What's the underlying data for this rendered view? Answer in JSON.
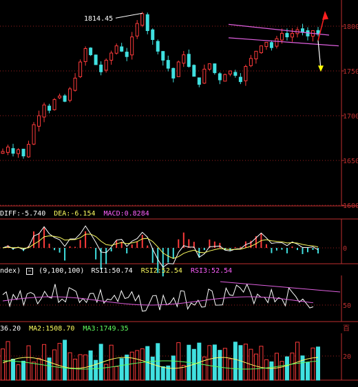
{
  "chart_data": [
    {
      "type": "candlestick",
      "title": "",
      "price_axis": {
        "ticks": [
          1800,
          1750,
          1700,
          1650,
          1600
        ],
        "range": [
          1600,
          1820
        ]
      },
      "annotations": [
        {
          "label": "1814.45",
          "value": 1814.45
        }
      ],
      "colors": {
        "up": "#ff3b3b",
        "down": "#40e0e0",
        "channel": "#e060e0",
        "arrow_up": "#ff2020",
        "arrow_down": "#ffff00"
      },
      "closes": [
        1660,
        1665,
        1658,
        1662,
        1655,
        1668,
        1690,
        1700,
        1712,
        1706,
        1718,
        1722,
        1716,
        1730,
        1742,
        1760,
        1775,
        1768,
        1757,
        1749,
        1762,
        1770,
        1778,
        1772,
        1766,
        1788,
        1803,
        1814,
        1795,
        1785,
        1772,
        1762,
        1753,
        1742,
        1760,
        1768,
        1755,
        1744,
        1735,
        1752,
        1758,
        1748,
        1740,
        1746,
        1750,
        1745,
        1738,
        1755,
        1764,
        1772,
        1778,
        1782,
        1776,
        1786,
        1792,
        1788,
        1792,
        1796,
        1793,
        1789,
        1795,
        1791
      ]
    },
    {
      "type": "macd",
      "values": {
        "diff": "-5.740",
        "dea": "-6.154",
        "macd": "0.8284"
      },
      "zero_label": "0",
      "labels": {
        "diff": "DIFF:",
        "dea": "DEA:",
        "macd": "MACD:"
      }
    },
    {
      "type": "rsi",
      "params": "(9,100,100)",
      "series_labels": {
        "rsi1": "RSI1:",
        "rsi2": "RSI2:",
        "rsi3": "RSI3:"
      },
      "values": {
        "rsi1": "50.74",
        "rsi2": "52.54",
        "rsi3": "52.54"
      },
      "tick": "50",
      "prefix": "ndex)"
    },
    {
      "type": "bar",
      "labels": {
        "ma1": "36.20",
        "ma2": "MA2:1508.70",
        "ma3": "MA3:1749.35"
      },
      "tick": "20",
      "corner_label": "百"
    }
  ]
}
